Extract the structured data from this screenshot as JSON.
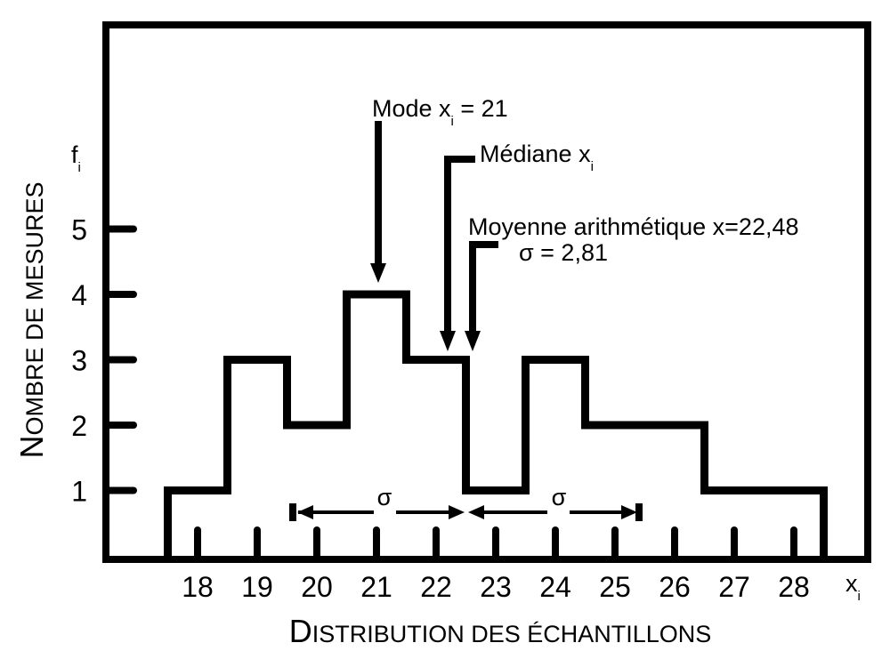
{
  "chart_data": {
    "type": "histogram",
    "title": "",
    "xlabel": {
      "cap": "D",
      "rest": "ISTRIBUTION DES ÉCHANTILLONS"
    },
    "ylabel": {
      "cap": "N",
      "rest": "OMBRE DE MESURES"
    },
    "x_symbol": {
      "base": "x",
      "sub": "i"
    },
    "y_symbol": {
      "base": "f",
      "sub": "i"
    },
    "categories": [
      "18",
      "19",
      "20",
      "21",
      "22",
      "23",
      "24",
      "25",
      "26",
      "27",
      "28"
    ],
    "x": [
      18,
      19,
      20,
      21,
      22,
      23,
      24,
      25,
      26,
      27,
      28
    ],
    "values": [
      1,
      3,
      2,
      4,
      3,
      1,
      3,
      2,
      2,
      1,
      1
    ],
    "yticks": [
      "1",
      "2",
      "3",
      "4",
      "5"
    ],
    "ylim": [
      0,
      6
    ],
    "grid": false,
    "annotations": {
      "mode": {
        "text": "Mode x",
        "sub": "i",
        "suffix": " = 21",
        "value": 21
      },
      "median": {
        "text": "Médiane x",
        "sub": "i",
        "value": 22.2
      },
      "mean": {
        "text": "Moyenne arithmétique x=22,48",
        "value": 22.48
      },
      "sigma": {
        "text": "σ = 2,81",
        "value": 2.81
      },
      "sigma_symbol": "σ"
    }
  }
}
